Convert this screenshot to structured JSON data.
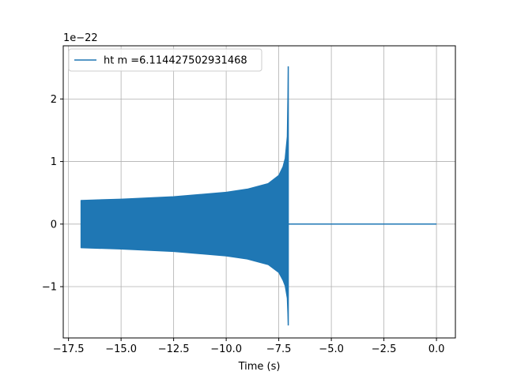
{
  "chart_data": {
    "type": "line",
    "title": "",
    "xlabel": "Time (s)",
    "ylabel": "",
    "y_offset_label": "1e−22",
    "xlim": [
      -17.75,
      0.9
    ],
    "ylim": [
      -1.82,
      2.85
    ],
    "grid": true,
    "legend_position": "top-left",
    "xticks": [
      -17.5,
      -15.0,
      -12.5,
      -10.0,
      -7.5,
      -5.0,
      -2.5,
      0.0
    ],
    "xtick_labels": [
      "−17.5",
      "−15.0",
      "−12.5",
      "−10.0",
      "−7.5",
      "−5.0",
      "−2.5",
      "0.0"
    ],
    "yticks": [
      -1,
      0,
      1,
      2
    ],
    "ytick_labels": [
      "−1",
      "0",
      "1",
      "2"
    ],
    "series": [
      {
        "name": "ht m =6.114427502931468",
        "color": "#1f77b4",
        "signal_start": -16.9,
        "merger_time": -7.05,
        "end_time": 0.0,
        "envelope": [
          [
            -16.9,
            0.38
          ],
          [
            -15.0,
            0.4
          ],
          [
            -12.5,
            0.44
          ],
          [
            -10.0,
            0.51
          ],
          [
            -9.0,
            0.56
          ],
          [
            -8.0,
            0.65
          ],
          [
            -7.5,
            0.78
          ],
          [
            -7.3,
            0.92
          ],
          [
            -7.2,
            1.05
          ],
          [
            -7.1,
            1.4
          ],
          [
            -7.05,
            2.52
          ]
        ],
        "min_peak": -1.62
      }
    ]
  }
}
